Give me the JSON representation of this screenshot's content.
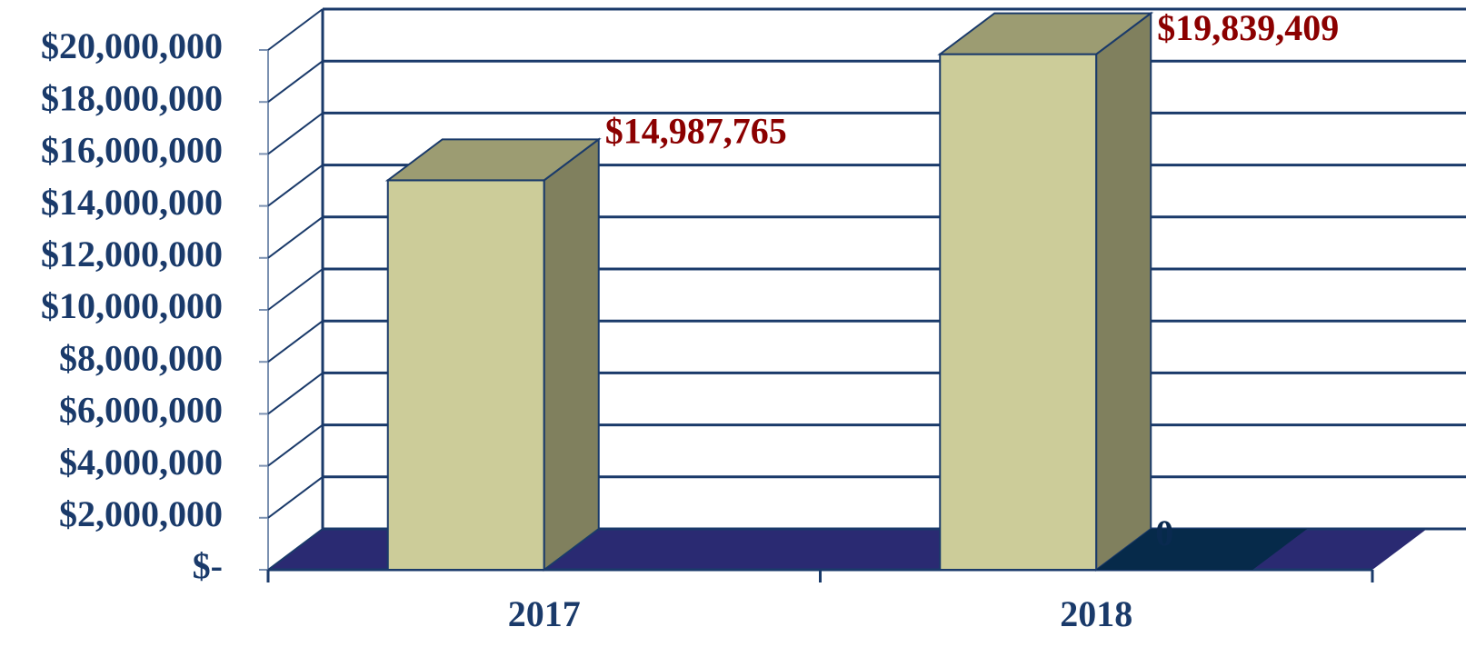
{
  "chart_data": {
    "type": "bar3d",
    "categories": [
      "2017",
      "2018"
    ],
    "series": [
      {
        "color": "#cccc99",
        "values": [
          14987765,
          19839409
        ],
        "value_labels": [
          "$14,987,765",
          "$19,839,409"
        ]
      },
      {
        "color": "#062a4a",
        "values": [
          null,
          0
        ]
      }
    ],
    "ylim": [
      0,
      20000000
    ],
    "yticks": [
      {
        "value": 0,
        "label": "$-"
      },
      {
        "value": 2000000,
        "label": "$2,000,000"
      },
      {
        "value": 4000000,
        "label": "$4,000,000"
      },
      {
        "value": 6000000,
        "label": "$6,000,000"
      },
      {
        "value": 8000000,
        "label": "$8,000,000"
      },
      {
        "value": 10000000,
        "label": "$10,000,000"
      },
      {
        "value": 12000000,
        "label": "$12,000,000"
      },
      {
        "value": 14000000,
        "label": "$14,000,000"
      },
      {
        "value": 16000000,
        "label": "$16,000,000"
      },
      {
        "value": 18000000,
        "label": "$18,000,000"
      },
      {
        "value": 20000000,
        "label": "$20,000,000"
      }
    ],
    "grid": true
  }
}
